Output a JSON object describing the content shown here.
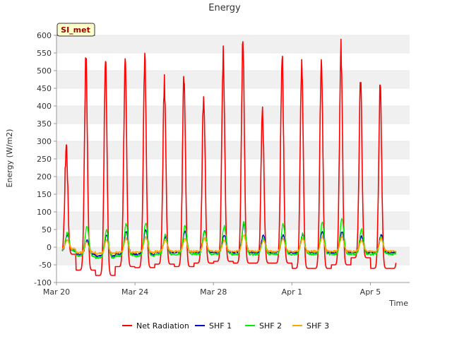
{
  "colors": {
    "Net Radiation": "#ff0000",
    "SHF 1": "#0000cc",
    "SHF 2": "#00ee00",
    "SHF 3": "#ffa500",
    "band": "#f0f0f0",
    "badge_fill": "#ffffcc",
    "badge_text": "#990000"
  },
  "chart_data": {
    "type": "line",
    "title": "Energy",
    "xlabel": "Time",
    "ylabel": "Energy (W/m2)",
    "site_label": "SI_met",
    "ylim": [
      -100,
      600
    ],
    "yticks": [
      -100,
      -50,
      0,
      50,
      100,
      150,
      200,
      250,
      300,
      350,
      400,
      450,
      500,
      550,
      600
    ],
    "xlim": [
      0,
      18
    ],
    "xticks": [
      {
        "day": 0,
        "label": "Mar 20"
      },
      {
        "day": 4,
        "label": "Mar 24"
      },
      {
        "day": 8,
        "label": "Mar 28"
      },
      {
        "day": 12,
        "label": "Apr 1"
      },
      {
        "day": 16,
        "label": "Apr 5"
      }
    ],
    "x_units": "days since Mar 20",
    "data_range": [
      0.3,
      17.3
    ],
    "legend_position": "bottom",
    "series": [
      {
        "name": "Net Radiation",
        "night_value": -55,
        "daily_peaks": [
          290,
          535,
          520,
          515,
          525,
          460,
          485,
          435,
          550,
          575,
          380,
          535,
          525,
          535,
          560,
          460,
          455
        ],
        "night_values": [
          -20,
          -65,
          -80,
          -55,
          -58,
          -48,
          -55,
          -45,
          -40,
          -45,
          -45,
          -45,
          -60,
          -60,
          -50,
          -30,
          -60
        ]
      },
      {
        "name": "SHF 1",
        "night_value": -18,
        "daily_peaks": [
          35,
          20,
          35,
          45,
          50,
          30,
          45,
          45,
          35,
          65,
          35,
          35,
          35,
          45,
          45,
          30,
          35
        ],
        "night_values": [
          -10,
          -20,
          -25,
          -20,
          -20,
          -15,
          -15,
          -15,
          -15,
          -15,
          -15,
          -15,
          -15,
          -15,
          -15,
          -15,
          -15
        ]
      },
      {
        "name": "SHF 2",
        "night_value": -20,
        "daily_peaks": [
          40,
          60,
          50,
          65,
          70,
          35,
          60,
          45,
          60,
          70,
          25,
          65,
          40,
          70,
          80,
          50,
          30
        ],
        "night_values": [
          -10,
          -25,
          -30,
          -25,
          -25,
          -20,
          -20,
          -20,
          -20,
          -20,
          -20,
          -20,
          -20,
          -20,
          -20,
          -20,
          -20
        ]
      },
      {
        "name": "SHF 3",
        "night_value": -12,
        "daily_peaks": [
          20,
          15,
          20,
          25,
          30,
          20,
          25,
          25,
          20,
          35,
          20,
          25,
          25,
          30,
          30,
          20,
          25
        ],
        "night_values": [
          -5,
          -15,
          -18,
          -15,
          -15,
          -12,
          -12,
          -12,
          -12,
          -12,
          -12,
          -12,
          -12,
          -12,
          -12,
          -12,
          -12
        ]
      }
    ]
  }
}
